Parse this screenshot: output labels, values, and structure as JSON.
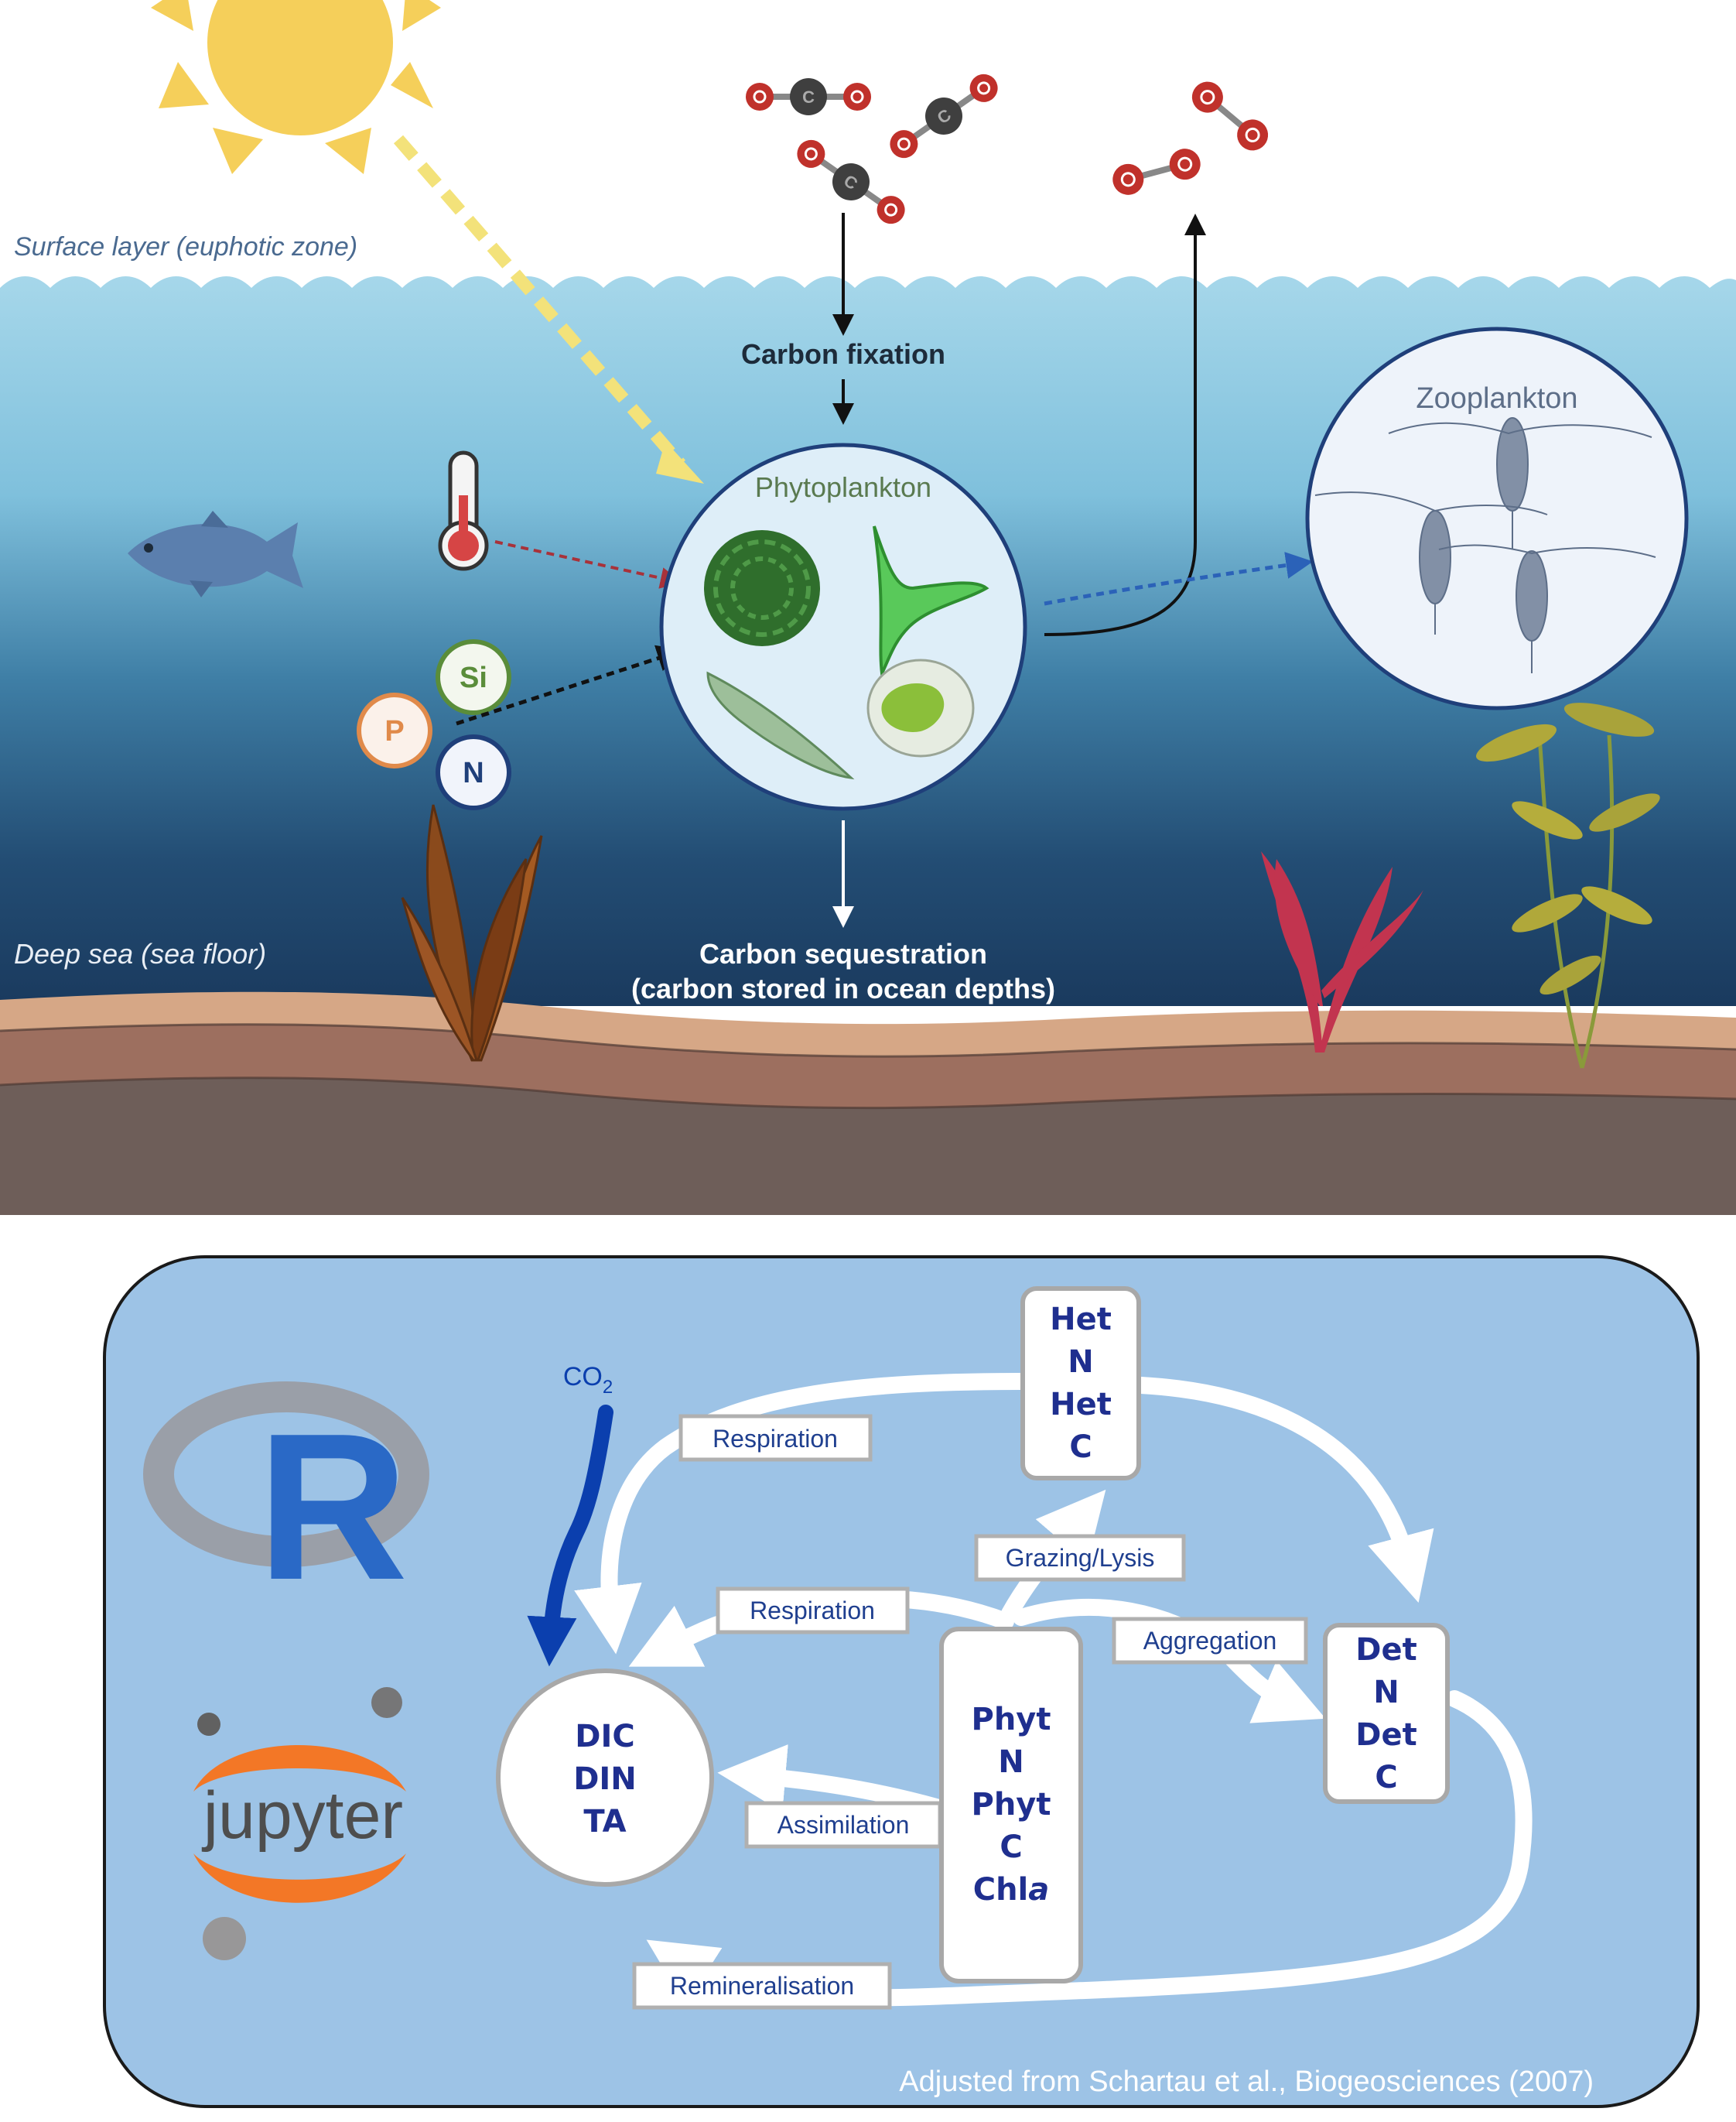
{
  "top_panel": {
    "surface_layer_label": "Surface layer (euphotic zone)",
    "deep_sea_label": "Deep sea (sea floor)",
    "carbon_fixation_label": "Carbon fixation",
    "phytoplankton_label": "Phytoplankton",
    "zooplankton_label": "Zooplankton",
    "carbon_sequestration_line1": "Carbon sequestration",
    "carbon_sequestration_line2": "(carbon stored in ocean depths)",
    "nutrients": [
      "Si",
      "P",
      "N"
    ],
    "colors": {
      "sky": "#ffffff",
      "sun": "#f5cf5a",
      "water_top": "#9fd3e8",
      "water_bottom": "#1c3f63",
      "sediment_light": "#d9a987",
      "sediment_mid": "#9c6f5f",
      "sediment_dark": "#6f5d58",
      "co2_oxygen": "#c0312b",
      "co2_carbon": "#3f3f3f"
    }
  },
  "bottom_panel": {
    "co2_label": "CO",
    "co2_subscript": "2",
    "boxes": {
      "het": [
        "Het",
        "N",
        "Het",
        "C"
      ],
      "det": [
        "Det",
        "N",
        "Det",
        "C"
      ],
      "phyt": [
        "Phyt",
        "N",
        "Phyt",
        "C",
        "Chl",
        "a"
      ],
      "dic": [
        "DIC",
        "DIN",
        "TA"
      ]
    },
    "flows": {
      "respiration_outer": "Respiration",
      "respiration_inner": "Respiration",
      "grazing": "Grazing/Lysis",
      "aggregation": "Aggregation",
      "assimilation": "Assimilation",
      "remineralisation": "Remineralisation"
    },
    "logos": {
      "r": "R",
      "jupyter": "jupyter"
    },
    "credit": "Adjusted from Schartau et al., Biogeosciences (2007)",
    "colors": {
      "panel_bg": "#9dc3e6",
      "box_text": "#1f2f8f",
      "label_text": "#1f3f8f",
      "co2_arrow": "#0b3fae",
      "jupyter_orange": "#f37726"
    }
  }
}
